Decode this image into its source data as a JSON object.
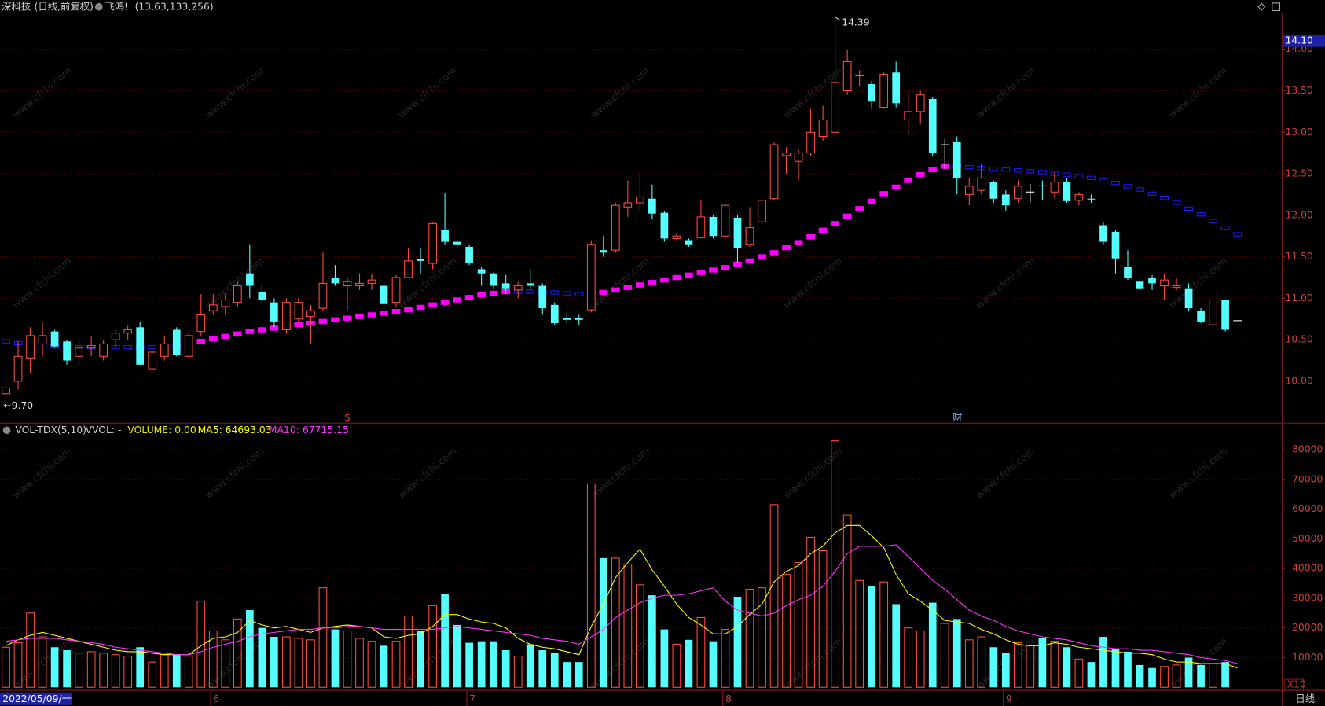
{
  "header": {
    "title": "深科技",
    "subtitle": "(日线,前复权)",
    "indicator": "飞鸿!",
    "params": "(13,63,133,256)"
  },
  "watermark": "www.cfchi.com",
  "footer": {
    "period": "日线"
  },
  "chart_data": [
    {
      "type": "candlestick",
      "categories": [
        "2022/05/09/一",
        null,
        null,
        null,
        null,
        null,
        null,
        null,
        null,
        null,
        null,
        null,
        null,
        null,
        null,
        null,
        null,
        "6",
        null,
        null,
        null,
        null,
        null,
        null,
        null,
        null,
        null,
        null,
        null,
        null,
        null,
        null,
        null,
        null,
        null,
        null,
        null,
        null,
        "7",
        null,
        null,
        null,
        null,
        null,
        null,
        null,
        null,
        null,
        null,
        null,
        null,
        null,
        null,
        null,
        null,
        null,
        null,
        null,
        null,
        "8",
        null,
        null,
        null,
        null,
        null,
        null,
        null,
        null,
        null,
        null,
        null,
        null,
        null,
        null,
        null,
        null,
        null,
        null,
        null,
        null,
        null,
        null,
        "9",
        null,
        null,
        null,
        null,
        null,
        null,
        null,
        null,
        null,
        null,
        null,
        null,
        null,
        null,
        null,
        null,
        null,
        null,
        null
      ],
      "open": [
        9.85,
        10.0,
        10.28,
        10.45,
        10.6,
        10.48,
        10.3,
        10.4,
        10.3,
        10.5,
        10.58,
        10.65,
        10.15,
        10.3,
        10.62,
        10.3,
        10.6,
        10.85,
        10.9,
        10.95,
        11.3,
        11.08,
        10.95,
        10.62,
        10.75,
        10.78,
        10.88,
        11.25,
        11.15,
        11.15,
        11.18,
        11.15,
        10.95,
        11.25,
        11.47,
        11.42,
        11.82,
        11.68,
        11.62,
        11.35,
        11.3,
        11.18,
        11.1,
        11.18,
        11.15,
        10.92,
        10.76,
        10.76,
        10.86,
        11.58,
        11.58,
        12.1,
        12.15,
        12.2,
        12.03,
        11.72,
        11.7,
        11.73,
        11.98,
        11.75,
        11.97,
        11.65,
        11.92,
        12.2,
        12.72,
        12.65,
        12.75,
        12.95,
        13.0,
        13.5,
        13.68,
        13.58,
        13.3,
        13.72,
        13.15,
        13.25,
        13.4,
        12.85,
        12.88,
        12.25,
        12.3,
        12.4,
        12.25,
        12.2,
        12.28,
        12.36,
        12.28,
        12.4,
        12.18,
        12.2,
        11.88,
        11.8,
        11.38,
        11.2,
        11.25,
        11.15,
        11.13,
        11.12,
        10.85,
        10.68,
        10.98,
        10.73
      ],
      "high": [
        10.15,
        10.48,
        10.65,
        10.7,
        10.62,
        10.5,
        10.5,
        10.55,
        10.5,
        10.62,
        10.67,
        10.72,
        10.38,
        10.55,
        10.65,
        10.6,
        11.05,
        11.05,
        11.05,
        11.2,
        11.65,
        11.15,
        11.0,
        11.0,
        11.0,
        10.92,
        11.55,
        11.4,
        11.25,
        11.3,
        11.3,
        11.2,
        11.28,
        11.6,
        11.6,
        11.92,
        12.27,
        11.7,
        11.65,
        11.38,
        11.32,
        11.28,
        11.2,
        11.35,
        11.18,
        10.95,
        10.82,
        10.8,
        11.7,
        11.75,
        12.15,
        12.42,
        12.5,
        12.37,
        12.05,
        11.78,
        11.72,
        12.18,
        12.0,
        12.13,
        12.0,
        12.1,
        12.25,
        12.88,
        12.82,
        12.8,
        13.28,
        13.32,
        14.39,
        14.0,
        13.75,
        13.62,
        13.72,
        13.85,
        13.5,
        13.5,
        13.42,
        12.92,
        12.95,
        12.45,
        12.62,
        12.42,
        12.3,
        12.42,
        12.38,
        12.42,
        12.52,
        12.45,
        12.28,
        12.25,
        11.92,
        11.82,
        11.58,
        11.28,
        11.28,
        11.3,
        11.25,
        11.18,
        10.88,
        10.98,
        10.98,
        10.73
      ],
      "low": [
        9.7,
        9.9,
        10.1,
        10.3,
        10.4,
        10.2,
        10.2,
        10.3,
        10.25,
        10.4,
        10.5,
        10.2,
        10.13,
        10.25,
        10.3,
        10.28,
        10.55,
        10.8,
        10.8,
        10.9,
        11.0,
        10.95,
        10.65,
        10.58,
        10.7,
        10.45,
        10.85,
        11.15,
        10.85,
        11.1,
        11.1,
        10.9,
        10.9,
        11.25,
        11.3,
        11.35,
        11.65,
        11.6,
        11.4,
        11.15,
        11.1,
        11.05,
        11.0,
        11.1,
        10.8,
        10.68,
        10.7,
        10.68,
        10.83,
        11.5,
        11.55,
        11.98,
        12.05,
        11.95,
        11.68,
        11.7,
        11.62,
        11.72,
        11.72,
        11.72,
        11.42,
        11.62,
        11.88,
        12.18,
        12.5,
        12.42,
        12.72,
        12.9,
        12.95,
        13.45,
        13.55,
        13.28,
        13.28,
        13.3,
        12.97,
        13.1,
        12.72,
        12.55,
        12.25,
        12.12,
        12.25,
        12.15,
        12.05,
        12.15,
        12.15,
        12.18,
        12.2,
        12.15,
        12.12,
        12.15,
        11.65,
        11.3,
        11.22,
        11.05,
        11.1,
        10.98,
        11.1,
        10.85,
        10.7,
        10.65,
        10.6,
        10.73
      ],
      "close": [
        9.92,
        10.3,
        10.55,
        10.55,
        10.42,
        10.25,
        10.4,
        10.43,
        10.45,
        10.58,
        10.62,
        10.2,
        10.35,
        10.45,
        10.32,
        10.55,
        10.8,
        10.92,
        10.98,
        11.15,
        11.15,
        10.98,
        10.72,
        10.95,
        10.95,
        10.85,
        11.18,
        11.18,
        11.2,
        11.18,
        11.22,
        10.93,
        11.25,
        11.45,
        11.45,
        11.9,
        11.68,
        11.65,
        11.43,
        11.3,
        11.15,
        11.12,
        11.15,
        11.15,
        10.88,
        10.7,
        10.74,
        10.74,
        11.65,
        11.55,
        12.12,
        12.15,
        12.22,
        12.02,
        11.72,
        11.75,
        11.65,
        11.98,
        11.75,
        12.12,
        11.6,
        11.85,
        12.18,
        12.85,
        12.75,
        12.75,
        13.0,
        13.15,
        13.6,
        13.85,
        13.69,
        13.37,
        13.7,
        13.35,
        13.25,
        13.45,
        12.75,
        12.85,
        12.45,
        12.35,
        12.45,
        12.2,
        12.12,
        12.35,
        12.28,
        12.35,
        12.4,
        12.17,
        12.25,
        12.19,
        11.68,
        11.48,
        11.25,
        11.12,
        11.18,
        11.22,
        11.15,
        10.88,
        10.72,
        10.98,
        10.62,
        10.73
      ],
      "up_color": "#ff4a3d",
      "down_color": "#54ffff",
      "doji_color": "#ffffff",
      "line": {
        "values": [
          10.48,
          10.46,
          10.44,
          10.43,
          10.42,
          10.42,
          10.41,
          10.41,
          10.41,
          10.41,
          10.41,
          10.41,
          10.41,
          10.42,
          10.42,
          10.45,
          10.48,
          10.51,
          10.54,
          10.57,
          10.6,
          10.62,
          10.64,
          10.66,
          10.68,
          10.7,
          10.72,
          10.74,
          10.76,
          10.78,
          10.8,
          10.82,
          10.84,
          10.86,
          10.89,
          10.92,
          10.95,
          10.98,
          11.01,
          11.04,
          11.06,
          11.08,
          11.08,
          11.08,
          11.07,
          11.07,
          11.06,
          11.05,
          11.05,
          11.07,
          11.1,
          11.13,
          11.16,
          11.19,
          11.22,
          11.25,
          11.28,
          11.31,
          11.34,
          11.37,
          11.41,
          11.45,
          11.5,
          11.55,
          11.61,
          11.67,
          11.74,
          11.82,
          11.9,
          11.99,
          12.08,
          12.17,
          12.26,
          12.34,
          12.42,
          12.49,
          12.55,
          12.59,
          12.59,
          12.58,
          12.57,
          12.56,
          12.55,
          12.54,
          12.53,
          12.52,
          12.5,
          12.49,
          12.47,
          12.45,
          12.42,
          12.39,
          12.35,
          12.31,
          12.26,
          12.21,
          12.15,
          12.08,
          12.01,
          11.93,
          11.85,
          11.77
        ],
        "up_color": "#ff00ff",
        "down_color": "#1a1aff"
      },
      "ylim": [
        9.5,
        14.41
      ],
      "yticks": [
        {
          "value": 10,
          "label": "10.00"
        },
        {
          "value": 10.5,
          "label": "10.50"
        },
        {
          "value": 11,
          "label": "11.00"
        },
        {
          "value": 11.5,
          "label": "11.50"
        },
        {
          "value": 12,
          "label": "12.00"
        },
        {
          "value": 12.5,
          "label": "12.50"
        },
        {
          "value": 13,
          "label": "13.00"
        },
        {
          "value": 13.5,
          "label": "13.50"
        },
        {
          "value": 14,
          "label": "14.00"
        }
      ],
      "grid": true,
      "price_marker": {
        "value": 14.1,
        "label": "14.10"
      },
      "annotations": [
        {
          "text": "14.39",
          "value": 14.39
        },
        {
          "text": "←9.70",
          "value": 9.7
        }
      ],
      "markers": [
        "$",
        "财"
      ]
    },
    {
      "type": "bar",
      "title": "VOL-TDX(5,10)",
      "subtitle": "VVOL: -",
      "series": [
        {
          "name": "VOLUME: 0.00",
          "color": "#e8e800",
          "values": [
            13500,
            15000,
            25000,
            17000,
            13500,
            12500,
            11500,
            12000,
            11500,
            11000,
            10500,
            13500,
            8500,
            11000,
            11000,
            10500,
            29000,
            19000,
            16000,
            23000,
            26000,
            20000,
            17000,
            17000,
            16500,
            16000,
            33500,
            19500,
            19000,
            16500,
            15500,
            14000,
            15500,
            24000,
            19000,
            27500,
            31500,
            21000,
            15000,
            15500,
            15500,
            12500,
            10500,
            14500,
            12500,
            11500,
            8500,
            8500,
            68500,
            43500,
            43500,
            41500,
            34500,
            31000,
            19500,
            14500,
            16000,
            23500,
            15500,
            19500,
            30500,
            33000,
            33500,
            61500,
            38000,
            42000,
            50500,
            46000,
            83000,
            58000,
            36000,
            34000,
            35500,
            28000,
            20000,
            19000,
            28500,
            21500,
            23000,
            16000,
            17000,
            13500,
            11500,
            15000,
            14000,
            16500,
            15500,
            13500,
            9500,
            8500,
            17000,
            13000,
            12000,
            7500,
            6500,
            7000,
            7500,
            10000,
            7500,
            8000,
            8500,
            0
          ]
        },
        {
          "name": "MA5: 64693.03",
          "color": "#ffff00",
          "values": [
            14000,
            16000,
            17500,
            18500,
            17500,
            16500,
            15500,
            14500,
            13500,
            12500,
            12000,
            12000,
            11500,
            11000,
            11000,
            11000,
            14000,
            16500,
            17000,
            18500,
            22500,
            21000,
            20000,
            20500,
            19500,
            18500,
            20000,
            20500,
            21000,
            20500,
            20000,
            17000,
            16500,
            17500,
            18000,
            20500,
            24500,
            24500,
            23000,
            22000,
            21500,
            20000,
            16500,
            14500,
            13500,
            13000,
            12000,
            11000,
            20500,
            28000,
            37000,
            42000,
            46500,
            39500,
            34000,
            28000,
            23500,
            21000,
            18000,
            18000,
            20500,
            24500,
            28000,
            35500,
            39000,
            41000,
            45000,
            47500,
            52000,
            54500,
            54500,
            51000,
            47000,
            38000,
            31500,
            29000,
            26000,
            22500,
            22000,
            21500,
            19500,
            18000,
            16000,
            14500,
            14000,
            14000,
            15000,
            14500,
            13500,
            13000,
            12500,
            12000,
            11500,
            11500,
            11000,
            9500,
            8500,
            8500,
            8000,
            8000,
            8000,
            6500
          ]
        },
        {
          "name": "MA10: 67715.15",
          "color": "#ff33ff",
          "values": [
            15500,
            16000,
            16500,
            16500,
            16500,
            16000,
            15500,
            15000,
            14500,
            13500,
            13000,
            12500,
            12000,
            11500,
            11000,
            11000,
            12000,
            13500,
            14500,
            15500,
            17000,
            18000,
            18500,
            19000,
            19500,
            19500,
            20000,
            20000,
            20500,
            20500,
            20000,
            19500,
            19500,
            19500,
            19500,
            19500,
            20000,
            20500,
            20000,
            19500,
            19000,
            18500,
            18000,
            17500,
            16500,
            16000,
            15500,
            14500,
            17000,
            19500,
            23500,
            26000,
            28500,
            30000,
            31000,
            31000,
            31500,
            32500,
            33500,
            29000,
            26000,
            25000,
            24000,
            25000,
            27500,
            29500,
            31000,
            34000,
            39000,
            45000,
            47500,
            47500,
            47500,
            48000,
            44000,
            40000,
            36000,
            33000,
            29500,
            26000,
            24000,
            22500,
            20500,
            19000,
            18000,
            17000,
            16500,
            16000,
            15000,
            14000,
            13500,
            13000,
            13000,
            12500,
            12500,
            12000,
            11500,
            11000,
            10000,
            9500,
            9000,
            8000
          ]
        }
      ],
      "ylim": [
        0,
        88500
      ],
      "yticks": [
        10000,
        20000,
        30000,
        40000,
        50000,
        60000,
        70000,
        80000
      ],
      "grid": true,
      "unit_label": "X10"
    }
  ]
}
